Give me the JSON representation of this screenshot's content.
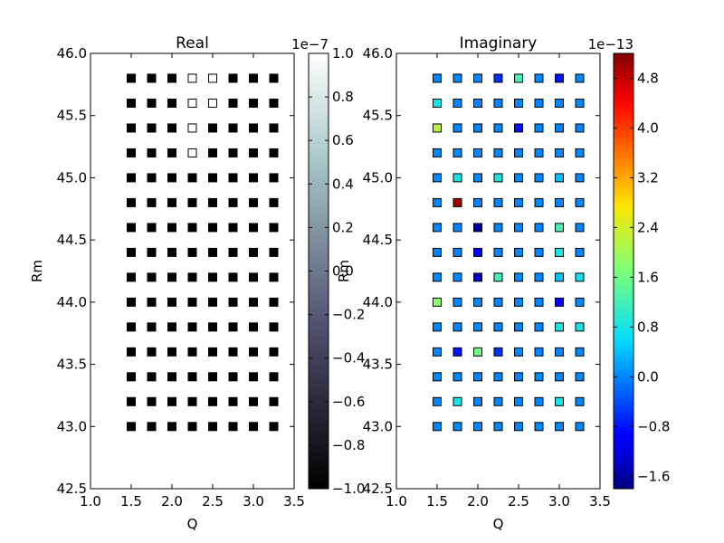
{
  "chart_data": [
    {
      "type": "scatter",
      "title": "Real",
      "xlabel": "Q",
      "ylabel": "Rm",
      "xlim": [
        1.0,
        3.5
      ],
      "ylim": [
        42.5,
        46.0
      ],
      "xticks": [
        "1.0",
        "1.5",
        "2.0",
        "2.5",
        "3.0",
        "3.5"
      ],
      "yticks": [
        "42.5",
        "43.0",
        "43.5",
        "44.0",
        "44.5",
        "45.0",
        "45.5",
        "46.0"
      ],
      "x": [
        1.5,
        1.75,
        2.0,
        2.25,
        2.5,
        2.75,
        3.0,
        3.25
      ],
      "y": [
        43.0,
        43.2,
        43.4,
        43.6,
        43.8,
        44.0,
        44.2,
        44.4,
        44.6,
        44.8,
        45.0,
        45.2,
        45.4,
        45.6,
        45.8
      ],
      "values": [
        [
          -1.0,
          -1.0,
          -1.0,
          -1.0,
          -1.0,
          -1.0,
          -1.0,
          -1.0
        ],
        [
          -1.0,
          -1.0,
          -1.0,
          -1.0,
          -1.0,
          -1.0,
          -1.0,
          -1.0
        ],
        [
          -1.0,
          -1.0,
          -1.0,
          -1.0,
          -1.0,
          -1.0,
          -1.0,
          -1.0
        ],
        [
          -1.0,
          -1.0,
          -1.0,
          -1.0,
          -1.0,
          -1.0,
          -1.0,
          -1.0
        ],
        [
          -1.0,
          -1.0,
          -1.0,
          -1.0,
          -1.0,
          -1.0,
          -1.0,
          -1.0
        ],
        [
          -1.0,
          -1.0,
          -1.0,
          -1.0,
          -1.0,
          -1.0,
          -1.0,
          -1.0
        ],
        [
          -1.0,
          -1.0,
          -1.0,
          -1.0,
          -1.0,
          -1.0,
          -1.0,
          -1.0
        ],
        [
          -1.0,
          -1.0,
          -1.0,
          -1.0,
          -1.0,
          -1.0,
          -1.0,
          -1.0
        ],
        [
          -1.0,
          -1.0,
          -1.0,
          -1.0,
          -1.0,
          -1.0,
          -1.0,
          -1.0
        ],
        [
          -1.0,
          -1.0,
          -1.0,
          -1.0,
          -1.0,
          -1.0,
          -1.0,
          -1.0
        ],
        [
          -1.0,
          -1.0,
          -1.0,
          -1.0,
          -1.0,
          -1.0,
          -1.0,
          -1.0
        ],
        [
          -1.0,
          -1.0,
          -1.0,
          1.0,
          -1.0,
          -1.0,
          -1.0,
          -1.0
        ],
        [
          -1.0,
          -1.0,
          -1.0,
          1.0,
          -1.0,
          -1.0,
          -1.0,
          -1.0
        ],
        [
          -1.0,
          -1.0,
          -1.0,
          1.0,
          1.0,
          -1.0,
          -1.0,
          -1.0
        ],
        [
          -1.0,
          -1.0,
          -1.0,
          1.0,
          1.0,
          -1.0,
          -1.0,
          -1.0
        ]
      ],
      "colorbar": {
        "label": "Rm",
        "exponent": "1e−7",
        "range": [
          -1.0,
          1.0
        ],
        "ticks": [
          "−1.0",
          "−0.8",
          "−0.6",
          "−0.4",
          "−0.2",
          "0.0",
          "0.2",
          "0.4",
          "0.6",
          "0.8",
          "1.0"
        ],
        "colormap": "bone"
      }
    },
    {
      "type": "scatter",
      "title": "Imaginary",
      "xlabel": "Q",
      "ylabel": "",
      "xlim": [
        1.0,
        3.5
      ],
      "ylim": [
        42.5,
        46.0
      ],
      "xticks": [
        "1.0",
        "1.5",
        "2.0",
        "2.5",
        "3.0",
        "3.5"
      ],
      "yticks": [
        "42.5",
        "43.0",
        "43.5",
        "44.0",
        "44.5",
        "45.0",
        "45.5",
        "46.0"
      ],
      "x": [
        1.5,
        1.75,
        2.0,
        2.25,
        2.5,
        2.75,
        3.0,
        3.25
      ],
      "y": [
        43.0,
        43.2,
        43.4,
        43.6,
        43.8,
        44.0,
        44.2,
        44.4,
        44.6,
        44.8,
        45.0,
        45.2,
        45.4,
        45.6,
        45.8
      ],
      "values": [
        [
          0.0,
          0.0,
          0.0,
          0.0,
          0.0,
          0.0,
          0.0,
          0.0
        ],
        [
          0.0,
          0.8,
          0.0,
          0.0,
          0.0,
          0.0,
          0.8,
          0.0
        ],
        [
          0.0,
          0.0,
          0.0,
          0.0,
          0.0,
          0.0,
          0.0,
          0.0
        ],
        [
          0.0,
          -0.8,
          1.6,
          -0.6,
          0.0,
          0.0,
          0.0,
          0.0
        ],
        [
          0.0,
          0.0,
          0.0,
          0.0,
          0.0,
          0.0,
          0.8,
          0.8
        ],
        [
          1.8,
          0.0,
          0.0,
          0.0,
          0.0,
          0.0,
          -1.0,
          0.0
        ],
        [
          0.0,
          0.0,
          -1.4,
          1.2,
          0.0,
          0.0,
          0.4,
          0.7
        ],
        [
          0.0,
          0.0,
          -1.0,
          0.0,
          0.0,
          0.0,
          0.8,
          0.0
        ],
        [
          0.0,
          0.0,
          -1.6,
          0.0,
          0.0,
          0.0,
          1.2,
          0.0
        ],
        [
          0.0,
          5.0,
          0.0,
          0.0,
          0.0,
          0.0,
          0.0,
          0.0
        ],
        [
          0.0,
          0.8,
          0.0,
          0.8,
          0.0,
          0.0,
          0.4,
          0.0
        ],
        [
          0.0,
          0.0,
          0.0,
          0.0,
          0.0,
          0.0,
          0.0,
          0.0
        ],
        [
          2.2,
          0.0,
          0.0,
          0.0,
          -0.8,
          0.0,
          0.0,
          0.0
        ],
        [
          0.8,
          0.0,
          0.0,
          0.0,
          0.0,
          0.0,
          0.0,
          0.0
        ],
        [
          0.0,
          0.0,
          0.0,
          -0.6,
          1.2,
          0.0,
          -0.8,
          0.0
        ]
      ],
      "colorbar": {
        "label": "",
        "exponent": "1e−13",
        "range": [
          -1.8,
          5.2
        ],
        "ticks": [
          "−1.6",
          "−0.8",
          "0.0",
          "0.8",
          "1.6",
          "2.4",
          "3.2",
          "4.0",
          "4.8"
        ],
        "colormap": "jet"
      }
    }
  ]
}
